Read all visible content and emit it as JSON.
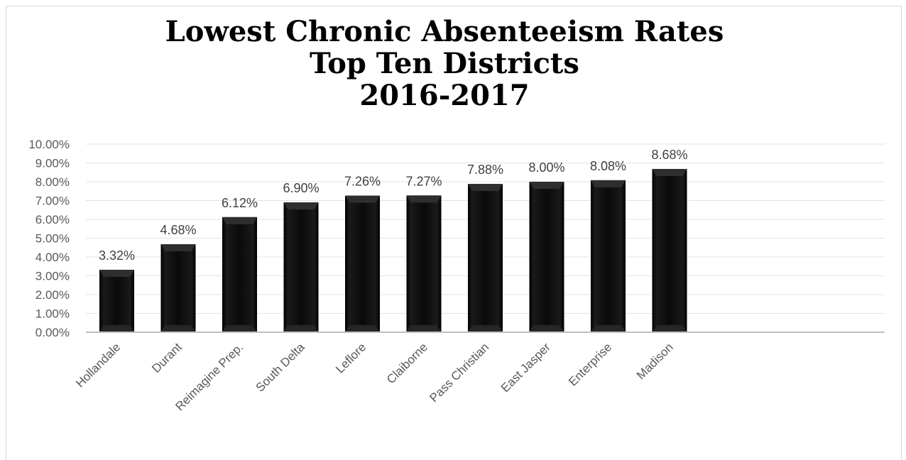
{
  "chart_data": {
    "type": "bar",
    "title": [
      "Lowest Chronic Absenteeism Rates",
      "Top Ten Districts",
      "2016-2017"
    ],
    "xlabel": "",
    "ylabel": "",
    "categories": [
      "Hollandale",
      "Durant",
      "Reimagine Prep.",
      "South Delta",
      "Leflore",
      "Claiborne",
      "Pass Christian",
      "East Jasper",
      "Enterprise",
      "Madison"
    ],
    "values": [
      3.32,
      4.68,
      6.12,
      6.9,
      7.26,
      7.27,
      7.88,
      8.0,
      8.08,
      8.68
    ],
    "data_labels": [
      "3.32%",
      "4.68%",
      "6.12%",
      "6.90%",
      "7.26%",
      "7.27%",
      "7.88%",
      "8.00%",
      "8.08%",
      "8.68%"
    ],
    "ylim": [
      0,
      10
    ],
    "yticks": [
      "0.00%",
      "1.00%",
      "2.00%",
      "3.00%",
      "4.00%",
      "5.00%",
      "6.00%",
      "7.00%",
      "8.00%",
      "9.00%",
      "10.00%"
    ],
    "grid": true,
    "legend": "none",
    "bar_color": "#000000"
  }
}
